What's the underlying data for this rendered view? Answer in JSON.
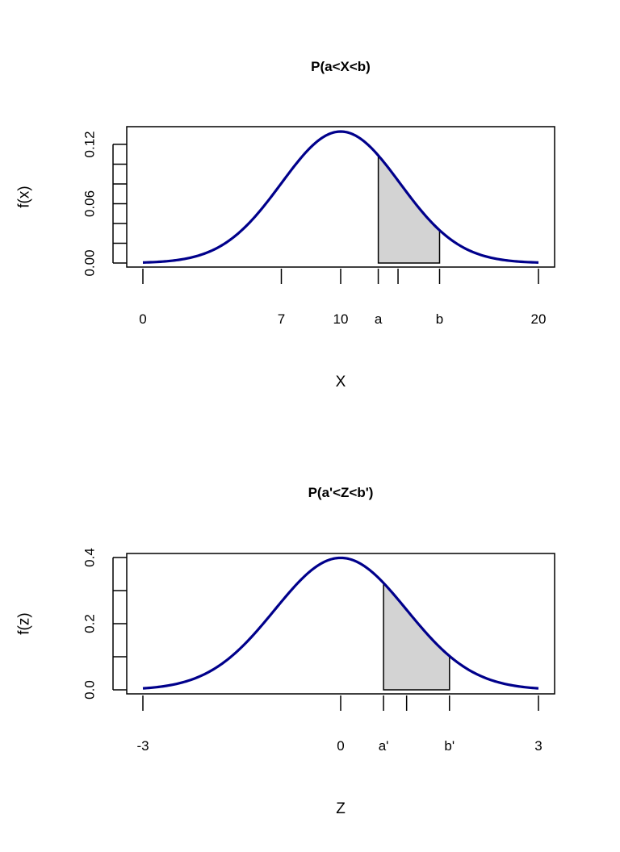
{
  "colors": {
    "curve": "#00008B",
    "shade": "#D3D3D3",
    "axis": "#000000"
  },
  "chart_data": [
    {
      "type": "line",
      "title": "P(a<X<b)",
      "xlabel": "X",
      "ylabel": "f(x)",
      "grid": false,
      "distribution": {
        "name": "normal",
        "mean": 10,
        "sd": 3
      },
      "xlim": [
        0,
        20
      ],
      "ylim": [
        0,
        0.133
      ],
      "yticks": {
        "values": [
          0,
          0.02,
          0.04,
          0.06,
          0.08,
          0.1,
          0.12
        ],
        "labels": {
          "0": "0.00",
          "0.06": "0.06",
          "0.12": "0.12"
        }
      },
      "xticks": [
        {
          "value": 0,
          "label": "0"
        },
        {
          "value": 7,
          "label": "7"
        },
        {
          "value": 10,
          "label": "10"
        },
        {
          "value": 11.9,
          "label": "a"
        },
        {
          "value": 12.9,
          "label": ""
        },
        {
          "value": 15,
          "label": "b"
        },
        {
          "value": 20,
          "label": "20"
        }
      ],
      "shaded_region": {
        "from": 11.9,
        "to": 15
      }
    },
    {
      "type": "line",
      "title": "P(a'<Z<b')",
      "xlabel": "Z",
      "ylabel": "f(z)",
      "grid": false,
      "distribution": {
        "name": "normal",
        "mean": 0,
        "sd": 1
      },
      "xlim": [
        -3,
        3
      ],
      "ylim": [
        0,
        0.4
      ],
      "yticks": {
        "values": [
          0,
          0.1,
          0.2,
          0.3,
          0.4
        ],
        "labels": {
          "0": "0.0",
          "0.2": "0.2",
          "0.4": "0.4"
        }
      },
      "xticks": [
        {
          "value": -3,
          "label": "-3"
        },
        {
          "value": 0,
          "label": "0"
        },
        {
          "value": 0.65,
          "label": "a'"
        },
        {
          "value": 1,
          "label": ""
        },
        {
          "value": 1.65,
          "label": "b'"
        },
        {
          "value": 3,
          "label": "3"
        }
      ],
      "shaded_region": {
        "from": 0.65,
        "to": 1.65
      }
    }
  ]
}
